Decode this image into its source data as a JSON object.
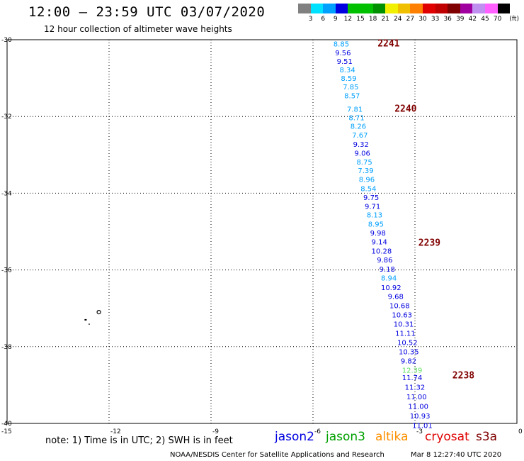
{
  "header": {
    "title": "12:00 — 23:59 UTC 03/07/2020",
    "subtitle": "12 hour collection of altimeter wave heights"
  },
  "legend": {
    "unit": "(ft)",
    "colors": [
      "#808080",
      "#00e0ff",
      "#00a0ff",
      "#0000e0",
      "#00c000",
      "#00c000",
      "#009000",
      "#f0f000",
      "#f0c000",
      "#ff8000",
      "#e00000",
      "#c00000",
      "#800000",
      "#a000a0",
      "#c090f0",
      "#ff60ff",
      "#000000"
    ],
    "labels": [
      "3",
      "6",
      "9",
      "12",
      "15",
      "18",
      "21",
      "24",
      "27",
      "30",
      "33",
      "36",
      "39",
      "42",
      "45",
      "70"
    ]
  },
  "axes": {
    "lat_labels": [
      "-30",
      "-32",
      "-34",
      "-36",
      "-38",
      "-40"
    ],
    "lon_labels": [
      "-15",
      "-12",
      "-9",
      "-6",
      "-3",
      "0"
    ],
    "lat_range": [
      -40,
      -30
    ],
    "lon_range": [
      -15,
      0
    ]
  },
  "passes": [
    {
      "label": "2241",
      "lon": -4.1,
      "lat": -30.1,
      "color": "#800000"
    },
    {
      "label": "2240",
      "lon": -3.6,
      "lat": -31.8,
      "color": "#800000"
    },
    {
      "label": "2239",
      "lon": -2.9,
      "lat": -35.3,
      "color": "#800000"
    },
    {
      "label": "2238",
      "lon": -1.9,
      "lat": -38.75,
      "color": "#800000"
    }
  ],
  "measurements": [
    {
      "v": "8.85",
      "lon": -5.4,
      "lat": -30.1,
      "color": "#00a0ff"
    },
    {
      "v": "9.56",
      "lon": -5.35,
      "lat": -30.33,
      "color": "#0000e0"
    },
    {
      "v": "9.51",
      "lon": -5.3,
      "lat": -30.55,
      "color": "#0000e0"
    },
    {
      "v": "8.34",
      "lon": -5.22,
      "lat": -30.78,
      "color": "#00a0ff"
    },
    {
      "v": "8.59",
      "lon": -5.18,
      "lat": -31.0,
      "color": "#00a0ff"
    },
    {
      "v": "7.85",
      "lon": -5.12,
      "lat": -31.22,
      "color": "#00a0ff"
    },
    {
      "v": "8.57",
      "lon": -5.08,
      "lat": -31.45,
      "color": "#00a0ff"
    },
    {
      "v": "7.81",
      "lon": -5.0,
      "lat": -31.8,
      "color": "#00a0ff"
    },
    {
      "v": "8.71",
      "lon": -4.95,
      "lat": -32.02,
      "color": "#00a0ff"
    },
    {
      "v": "8.26",
      "lon": -4.9,
      "lat": -32.25,
      "color": "#00a0ff"
    },
    {
      "v": "7.67",
      "lon": -4.85,
      "lat": -32.48,
      "color": "#00a0ff"
    },
    {
      "v": "9.32",
      "lon": -4.82,
      "lat": -32.72,
      "color": "#0000e0"
    },
    {
      "v": "9.06",
      "lon": -4.78,
      "lat": -32.95,
      "color": "#0000e0"
    },
    {
      "v": "8.75",
      "lon": -4.72,
      "lat": -33.18,
      "color": "#00a0ff"
    },
    {
      "v": "7.39",
      "lon": -4.68,
      "lat": -33.4,
      "color": "#00a0ff"
    },
    {
      "v": "8.96",
      "lon": -4.65,
      "lat": -33.63,
      "color": "#00a0ff"
    },
    {
      "v": "8.54",
      "lon": -4.6,
      "lat": -33.87,
      "color": "#00a0ff"
    },
    {
      "v": "9.75",
      "lon": -4.52,
      "lat": -34.1,
      "color": "#0000e0"
    },
    {
      "v": "9.71",
      "lon": -4.48,
      "lat": -34.33,
      "color": "#0000e0"
    },
    {
      "v": "8.13",
      "lon": -4.42,
      "lat": -34.56,
      "color": "#00a0ff"
    },
    {
      "v": "8.95",
      "lon": -4.38,
      "lat": -34.8,
      "color": "#00a0ff"
    },
    {
      "v": "9.98",
      "lon": -4.32,
      "lat": -35.03,
      "color": "#0000e0"
    },
    {
      "v": "9.14",
      "lon": -4.28,
      "lat": -35.26,
      "color": "#0000e0"
    },
    {
      "v": "10.28",
      "lon": -4.28,
      "lat": -35.5,
      "color": "#0000e0"
    },
    {
      "v": "9.86",
      "lon": -4.12,
      "lat": -35.73,
      "color": "#0000e0"
    },
    {
      "v": "9.18",
      "lon": -4.05,
      "lat": -35.97,
      "color": "#0000e0"
    },
    {
      "v": "8.94",
      "lon": -4.0,
      "lat": -36.2,
      "color": "#00a0ff"
    },
    {
      "v": "10.92",
      "lon": -4.0,
      "lat": -36.45,
      "color": "#0000e0"
    },
    {
      "v": "9.68",
      "lon": -3.8,
      "lat": -36.68,
      "color": "#0000e0"
    },
    {
      "v": "10.68",
      "lon": -3.75,
      "lat": -36.92,
      "color": "#0000e0"
    },
    {
      "v": "10.63",
      "lon": -3.68,
      "lat": -37.16,
      "color": "#0000e0"
    },
    {
      "v": "10.31",
      "lon": -3.63,
      "lat": -37.4,
      "color": "#0000e0"
    },
    {
      "v": "11.11",
      "lon": -3.58,
      "lat": -37.64,
      "color": "#0000e0"
    },
    {
      "v": "10.52",
      "lon": -3.52,
      "lat": -37.88,
      "color": "#0000e0"
    },
    {
      "v": "10.35",
      "lon": -3.48,
      "lat": -38.12,
      "color": "#0000e0"
    },
    {
      "v": "9.82",
      "lon": -3.42,
      "lat": -38.36,
      "color": "#0000e0"
    },
    {
      "v": "12.39",
      "lon": -3.38,
      "lat": -38.6,
      "color": "#60e060"
    },
    {
      "v": "11.74",
      "lon": -3.38,
      "lat": -38.8,
      "color": "#0000e0"
    },
    {
      "v": "11.32",
      "lon": -3.3,
      "lat": -39.05,
      "color": "#0000e0"
    },
    {
      "v": "11.00",
      "lon": -3.25,
      "lat": -39.3,
      "color": "#0000e0"
    },
    {
      "v": "11.00",
      "lon": -3.2,
      "lat": -39.55,
      "color": "#0000e0"
    },
    {
      "v": "10.93",
      "lon": -3.15,
      "lat": -39.8,
      "color": "#0000e0"
    },
    {
      "v": "11.01",
      "lon": -3.08,
      "lat": -40.05,
      "color": "#0000e0"
    }
  ],
  "footer": {
    "note": "note:  1) Time is in UTC;  2) SWH is in feet",
    "satellites": [
      {
        "name": "jason2",
        "color": "#0000e0"
      },
      {
        "name": "jason3",
        "color": "#00a000"
      },
      {
        "name": "altika",
        "color": "#ff9000"
      },
      {
        "name": "cryosat",
        "color": "#e00000"
      },
      {
        "name": "s3a",
        "color": "#800000"
      }
    ],
    "org": "NOAA/NESDIS Center for Satellite Applications and Research",
    "timestamp": "Mar  8 12:27:40 UTC 2020"
  }
}
